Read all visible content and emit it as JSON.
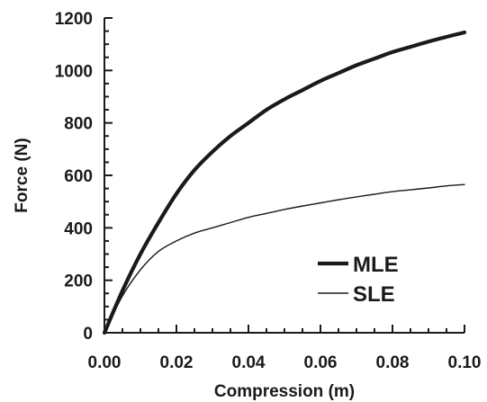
{
  "chart_data": {
    "type": "line",
    "title": "",
    "xlabel": "Compression (m)",
    "ylabel": "Force (N)",
    "xlim": [
      0,
      0.1
    ],
    "ylim": [
      0,
      1200
    ],
    "x_ticks": [
      "0.00",
      "0.02",
      "0.04",
      "0.06",
      "0.08",
      "0.10"
    ],
    "y_ticks": [
      "0",
      "200",
      "400",
      "600",
      "800",
      "1000",
      "1200"
    ],
    "grid": false,
    "legend_position": "bottom-right",
    "x": [
      0,
      0.005,
      0.01,
      0.015,
      0.02,
      0.025,
      0.03,
      0.035,
      0.04,
      0.045,
      0.05,
      0.055,
      0.06,
      0.065,
      0.07,
      0.075,
      0.08,
      0.085,
      0.09,
      0.095,
      0.1
    ],
    "series": [
      {
        "name": "MLE",
        "color": "#1a1a1a",
        "style": "thick",
        "values": [
          0,
          160,
          300,
          420,
          530,
          620,
          690,
          750,
          800,
          850,
          890,
          925,
          960,
          990,
          1020,
          1045,
          1070,
          1090,
          1110,
          1128,
          1145
        ]
      },
      {
        "name": "SLE",
        "color": "#1a1a1a",
        "style": "thin",
        "values": [
          0,
          140,
          240,
          310,
          350,
          380,
          400,
          420,
          440,
          455,
          470,
          483,
          495,
          507,
          518,
          528,
          538,
          545,
          552,
          560,
          565
        ]
      }
    ]
  }
}
